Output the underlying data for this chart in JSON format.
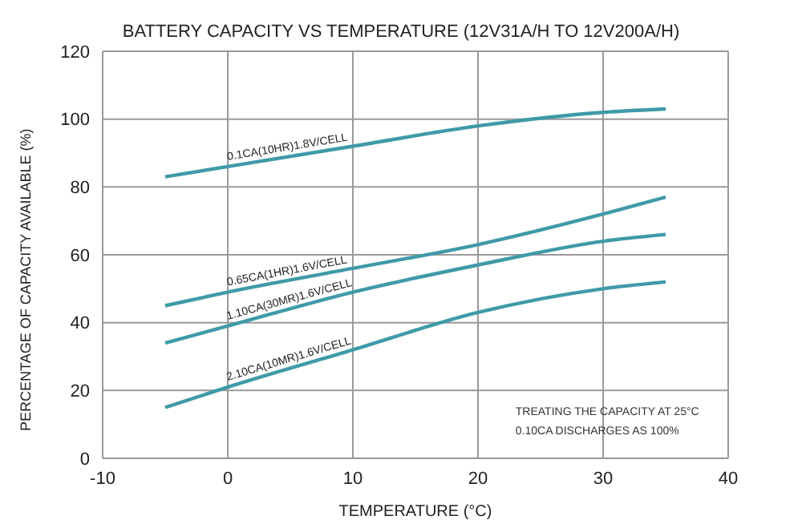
{
  "chart_data": {
    "type": "line",
    "title": "BATTERY CAPACITY VS TEMPERATURE (12V31A/H TO 12V200A/H)",
    "xlabel": "TEMPERATURE (°C)",
    "ylabel": "PERCENTAGE OF CAPACITY AVAILABLE (%)",
    "x": [
      -5,
      0,
      10,
      20,
      30,
      35
    ],
    "series": [
      {
        "name": "0.1CA(10HR)1.8V/CELL",
        "color": "#3f9aa8",
        "values": [
          83,
          86,
          92,
          98,
          102,
          103
        ]
      },
      {
        "name": "0.65CA(1HR)1.6V/CELL",
        "color": "#3f9aa8",
        "values": [
          45,
          49,
          56,
          63,
          72,
          77
        ]
      },
      {
        "name": "1.10CA(30MR)1.6V/CELL",
        "color": "#3f9aa8",
        "values": [
          34,
          39,
          49,
          57,
          64,
          66
        ]
      },
      {
        "name": "2.10CA(10MR)1.6V/CELL",
        "color": "#3f9aa8",
        "values": [
          15,
          21,
          32,
          43,
          50,
          52
        ]
      }
    ],
    "xlim": [
      -10,
      40
    ],
    "xticks": [
      -10,
      0,
      10,
      20,
      30,
      40
    ],
    "ylim": [
      0,
      120
    ],
    "yticks": [
      0,
      20,
      40,
      60,
      80,
      100,
      120
    ],
    "grid": true,
    "marker": "none",
    "line_style": "solid",
    "annotations": [
      "TREATING THE CAPACITY AT 25°C\n0.10CA DISCHARGES AS 100%"
    ]
  }
}
